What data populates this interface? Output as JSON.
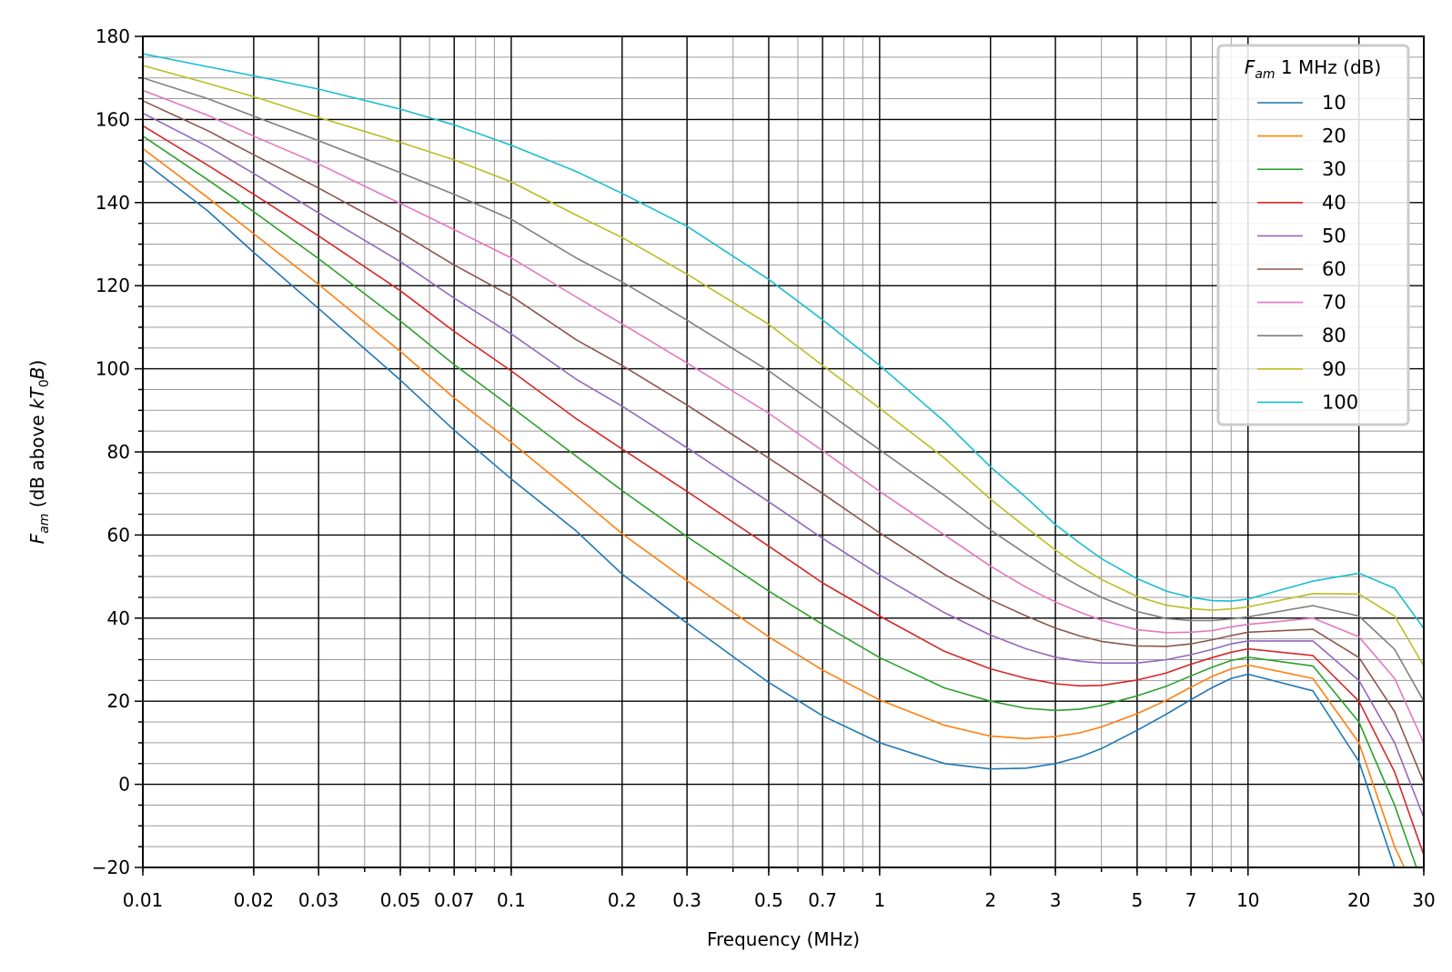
{
  "chart_data": {
    "type": "line",
    "xlabel": "Frequency (MHz)",
    "ylabel_main": "F",
    "ylabel_sub": "am",
    "ylabel_rest": " (dB above ",
    "ylabel_k": "kT",
    "ylabel_k_sub": "0",
    "ylabel_b": "B",
    "ylabel_close": ")",
    "xscale": "log",
    "xlim": [
      0.01,
      30
    ],
    "ylim": [
      -20,
      180
    ],
    "x_ticks": [
      0.01,
      0.02,
      0.03,
      0.05,
      0.07,
      0.1,
      0.2,
      0.3,
      0.5,
      0.7,
      1,
      2,
      3,
      5,
      7,
      10,
      20,
      30
    ],
    "x_tick_labels": [
      "0.01",
      "0.02",
      "0.03",
      "0.05",
      "0.07",
      "0.1",
      "0.2",
      "0.3",
      "0.5",
      "0.7",
      "1",
      "2",
      "3",
      "5",
      "7",
      "10",
      "20",
      "30"
    ],
    "y_ticks": [
      -20,
      0,
      20,
      40,
      60,
      80,
      100,
      120,
      140,
      160,
      180
    ],
    "y_tick_labels": [
      "−20",
      "0",
      "20",
      "40",
      "60",
      "80",
      "100",
      "120",
      "140",
      "160",
      "180"
    ],
    "grid": true,
    "legend": {
      "title_main": "F",
      "title_sub": "am",
      "title_rest": " 1 MHz (dB)",
      "placement": "top-right"
    },
    "x": [
      0.01,
      0.015,
      0.02,
      0.03,
      0.05,
      0.07,
      0.1,
      0.15,
      0.2,
      0.3,
      0.5,
      0.7,
      1,
      1.5,
      2,
      2.5,
      3,
      3.5,
      4,
      5,
      6,
      7,
      8,
      9,
      10,
      15,
      20,
      25,
      30
    ],
    "series": [
      {
        "name": "10",
        "color": "#1f77b4",
        "values": [
          150,
          138,
          128,
          114.5,
          97.3,
          85.2,
          73.5,
          61,
          50.6,
          38.8,
          24.5,
          16.5,
          10,
          5,
          3.7,
          3.9,
          5,
          6.6,
          8.6,
          13,
          16.9,
          20.4,
          23.3,
          25.5,
          26.5,
          22.5,
          5.5,
          -20,
          -30
        ]
      },
      {
        "name": "20",
        "color": "#ff7f0e",
        "values": [
          153,
          141.2,
          132.5,
          120.3,
          104.2,
          93,
          82.3,
          69.6,
          60.3,
          49,
          35.5,
          27.5,
          20.3,
          14.2,
          11.6,
          11,
          11.5,
          12.4,
          13.8,
          17,
          20.2,
          23.4,
          26,
          27.8,
          28.7,
          25.5,
          10,
          -15,
          -30
        ]
      },
      {
        "name": "30",
        "color": "#2ca02c",
        "values": [
          156,
          145.5,
          137.8,
          126.5,
          111.5,
          101,
          90.8,
          79,
          70.7,
          59.6,
          46.5,
          38.5,
          30.5,
          23.2,
          20,
          18.3,
          17.8,
          18.1,
          19,
          21.3,
          23.6,
          26.1,
          28.2,
          29.8,
          30.6,
          28.5,
          15,
          -5,
          -25
        ]
      },
      {
        "name": "40",
        "color": "#d62728",
        "values": [
          158.5,
          149,
          142,
          132,
          118.8,
          109,
          99.5,
          88,
          80.7,
          70.5,
          57.3,
          48.5,
          40.5,
          32,
          27.8,
          25.5,
          24.2,
          23.7,
          23.8,
          25.1,
          26.8,
          28.9,
          30.5,
          31.8,
          32.6,
          31,
          20,
          3,
          -17
        ]
      },
      {
        "name": "50",
        "color": "#9467bd",
        "values": [
          161.5,
          153.5,
          147,
          137.5,
          125.8,
          117,
          108.4,
          97.5,
          91,
          81,
          68,
          59.2,
          50.4,
          41.3,
          35.9,
          32.6,
          30.6,
          29.6,
          29.2,
          29.2,
          30,
          31.2,
          32.5,
          33.8,
          34.5,
          34.5,
          25,
          10,
          -8
        ]
      },
      {
        "name": "60",
        "color": "#8c564b",
        "values": [
          164.5,
          157.3,
          151.5,
          143.5,
          132.8,
          125,
          117.5,
          107,
          100.8,
          91.3,
          78.5,
          70,
          60.5,
          50.5,
          44.4,
          40.5,
          37.6,
          35.7,
          34.4,
          33.3,
          33.2,
          33.8,
          34.8,
          35.8,
          36.6,
          37.3,
          30.5,
          17.5,
          0.5
        ]
      },
      {
        "name": "70",
        "color": "#e377c2",
        "values": [
          167,
          161,
          156,
          149.3,
          139.8,
          133.5,
          126.7,
          117.3,
          110.8,
          101.4,
          89.3,
          80.3,
          70.5,
          60,
          52.5,
          47.4,
          43.9,
          41.4,
          39.5,
          37.2,
          36.5,
          36.6,
          37,
          37.9,
          38.5,
          40,
          35.5,
          25.5,
          10
        ]
      },
      {
        "name": "80",
        "color": "#7f7f7f",
        "values": [
          170,
          165,
          160.8,
          154.9,
          147.2,
          142,
          136,
          126.7,
          120.9,
          111.7,
          99.5,
          90.3,
          80.5,
          69.5,
          61.2,
          55.4,
          50.9,
          47.6,
          45,
          41.6,
          39.9,
          39.4,
          39.4,
          39.8,
          40.3,
          43,
          40.5,
          32.5,
          20
        ]
      },
      {
        "name": "90",
        "color": "#bcbd22",
        "values": [
          173,
          168.7,
          165.5,
          160.5,
          154.5,
          150.3,
          145,
          137,
          131.6,
          122.8,
          110.7,
          100.8,
          90.5,
          78.5,
          68.6,
          61.8,
          56.4,
          52.4,
          49.3,
          45.2,
          43.1,
          42.3,
          41.9,
          42.2,
          42.7,
          45.9,
          45.8,
          40.5,
          28.5
        ]
      },
      {
        "name": "100",
        "color": "#17becf",
        "values": [
          175.8,
          172.7,
          170.5,
          167.3,
          162.5,
          158.7,
          153.8,
          147.5,
          142.2,
          134.3,
          121.5,
          111.8,
          100.8,
          87.3,
          76.4,
          69,
          62.5,
          58,
          54.3,
          49.5,
          46.5,
          45,
          44.2,
          44.1,
          44.6,
          48.9,
          50.8,
          47.2,
          37.5
        ]
      }
    ]
  }
}
